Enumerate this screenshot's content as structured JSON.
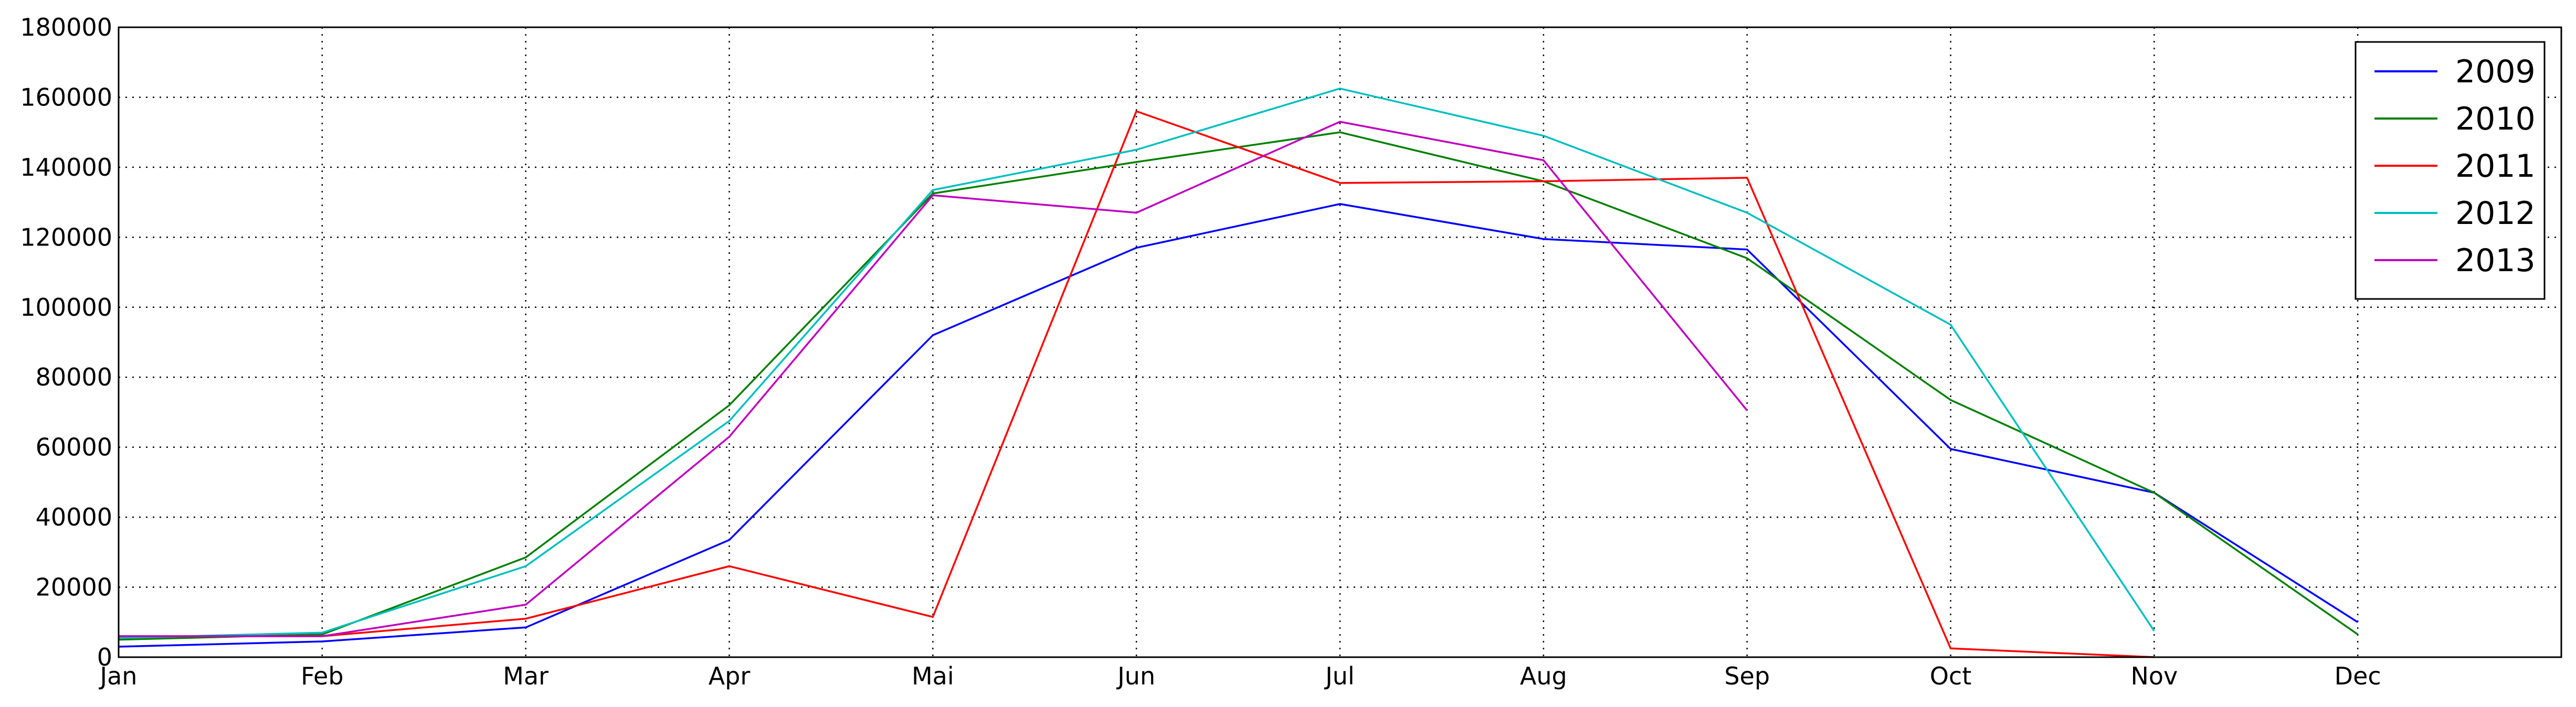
{
  "chart_data": {
    "type": "line",
    "categories": [
      "Jan",
      "Feb",
      "Mar",
      "Apr",
      "Mai",
      "Jun",
      "Jul",
      "Aug",
      "Sep",
      "Oct",
      "Nov",
      "Dec"
    ],
    "xlim": [
      0,
      12
    ],
    "ylim": [
      0,
      180000
    ],
    "yticks": [
      0,
      20000,
      40000,
      60000,
      80000,
      100000,
      120000,
      140000,
      160000,
      180000
    ],
    "grid": true,
    "legend": "top-right",
    "title": "",
    "xlabel": "",
    "ylabel": "",
    "series": [
      {
        "name": "2009",
        "color": "#0000ff",
        "values": [
          3000,
          4500,
          8500,
          33500,
          92000,
          117000,
          129500,
          119500,
          116500,
          59500,
          47000,
          10000
        ]
      },
      {
        "name": "2010",
        "color": "#008000",
        "values": [
          5000,
          6500,
          28500,
          72000,
          132500,
          141500,
          150000,
          136000,
          114000,
          73500,
          47000,
          6500
        ]
      },
      {
        "name": "2011",
        "color": "#ff0000",
        "values": [
          6000,
          6000,
          11000,
          26000,
          11500,
          156000,
          135500,
          136000,
          137000,
          2500,
          0,
          null
        ]
      },
      {
        "name": "2012",
        "color": "#00bfbf",
        "values": [
          5500,
          7000,
          26000,
          67500,
          133500,
          145000,
          162500,
          149000,
          127000,
          95000,
          7500,
          null
        ]
      },
      {
        "name": "2013",
        "color": "#bf00bf",
        "values": [
          6000,
          6000,
          15000,
          63000,
          132000,
          127000,
          153000,
          142000,
          70500,
          null,
          null,
          null
        ]
      }
    ]
  }
}
